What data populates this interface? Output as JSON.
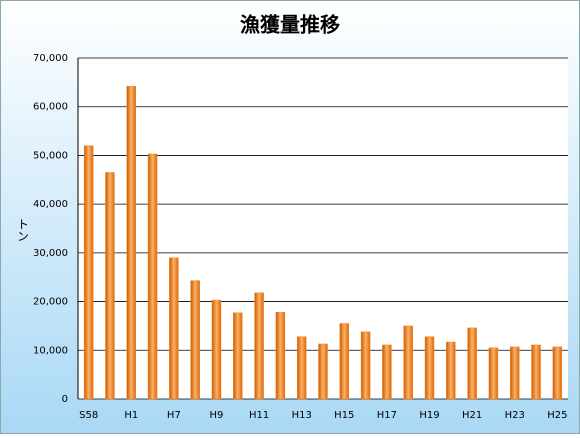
{
  "chart_data": {
    "type": "bar",
    "title": "漁獲量推移",
    "y_label": "トン",
    "categories": [
      "S58",
      null,
      "H1",
      null,
      "H7",
      null,
      "H9",
      null,
      "H11",
      null,
      "H13",
      null,
      "H15",
      null,
      "H17",
      null,
      "H19",
      null,
      "H21",
      null,
      "H23",
      null,
      "H25"
    ],
    "values": [
      52000,
      46500,
      64200,
      50300,
      29000,
      24300,
      20300,
      17700,
      21800,
      17800,
      12800,
      11300,
      15500,
      13800,
      11100,
      15000,
      12800,
      11700,
      14600,
      10500,
      10700,
      11100,
      10700
    ],
    "color": "#f08a24",
    "ylim": [
      0,
      70000
    ],
    "yticks": [
      0,
      {
        "value": 10000,
        "label": "10,000"
      },
      {
        "value": 20000,
        "label": "20,000"
      },
      {
        "value": 30000,
        "label": "30,000"
      },
      {
        "value": 40000,
        "label": "40,000"
      },
      {
        "value": 50000,
        "label": "50,000"
      },
      {
        "value": 60000,
        "label": "60,000"
      },
      {
        "value": 70000,
        "label": "70,000"
      }
    ],
    "grid": true
  }
}
